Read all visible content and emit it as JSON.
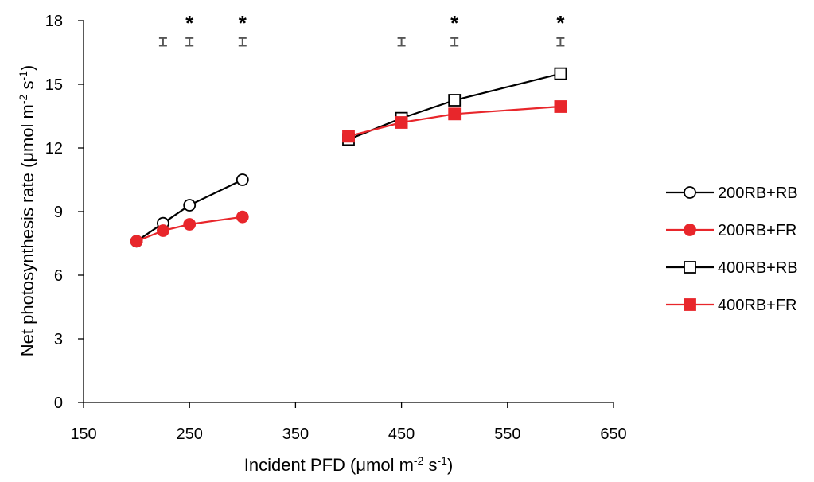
{
  "chart_data": {
    "type": "line",
    "title": "",
    "xlabel": "Incident PFD (μmol m",
    "xlabel_sup1": "-2",
    "xlabel_mid": " s",
    "xlabel_sup2": "-1",
    "xlabel_end": ")",
    "ylabel": "Net photosynthesis rate (μmol m",
    "ylabel_sup1": "-2",
    "ylabel_mid": " s",
    "ylabel_sup2": "-1",
    "ylabel_end": ")",
    "xlim": [
      150,
      650
    ],
    "ylim": [
      0,
      18
    ],
    "xticks": [
      150,
      250,
      350,
      450,
      550,
      650
    ],
    "yticks": [
      0,
      3,
      6,
      9,
      12,
      15,
      18
    ],
    "grid": false,
    "legend_position": "right",
    "series": [
      {
        "name": "200RB+RB",
        "marker": "circle",
        "filled": false,
        "color": "#000000",
        "x": [
          200,
          225,
          250,
          300
        ],
        "y": [
          7.6,
          8.45,
          9.3,
          10.5
        ]
      },
      {
        "name": "200RB+FR",
        "marker": "circle",
        "filled": true,
        "color": "#e8262b",
        "x": [
          200,
          225,
          250,
          300
        ],
        "y": [
          7.6,
          8.1,
          8.4,
          8.75
        ]
      },
      {
        "name": "400RB+RB",
        "marker": "square",
        "filled": false,
        "color": "#000000",
        "x": [
          400,
          450,
          500,
          600
        ],
        "y": [
          12.4,
          13.4,
          14.25,
          15.5
        ]
      },
      {
        "name": "400RB+FR",
        "marker": "square",
        "filled": true,
        "color": "#e8262b",
        "x": [
          400,
          450,
          500,
          600
        ],
        "y": [
          12.55,
          13.2,
          13.6,
          13.95
        ]
      }
    ],
    "error_bars": [
      {
        "x": 225,
        "y": 17.0,
        "err": 0.18
      },
      {
        "x": 250,
        "y": 17.0,
        "err": 0.18
      },
      {
        "x": 300,
        "y": 17.0,
        "err": 0.18
      },
      {
        "x": 450,
        "y": 17.0,
        "err": 0.18
      },
      {
        "x": 500,
        "y": 17.0,
        "err": 0.18
      },
      {
        "x": 600,
        "y": 17.0,
        "err": 0.18
      }
    ],
    "significance": [
      {
        "x": 250,
        "label": "*"
      },
      {
        "x": 300,
        "label": "*"
      },
      {
        "x": 500,
        "label": "*"
      },
      {
        "x": 600,
        "label": "*"
      }
    ]
  }
}
